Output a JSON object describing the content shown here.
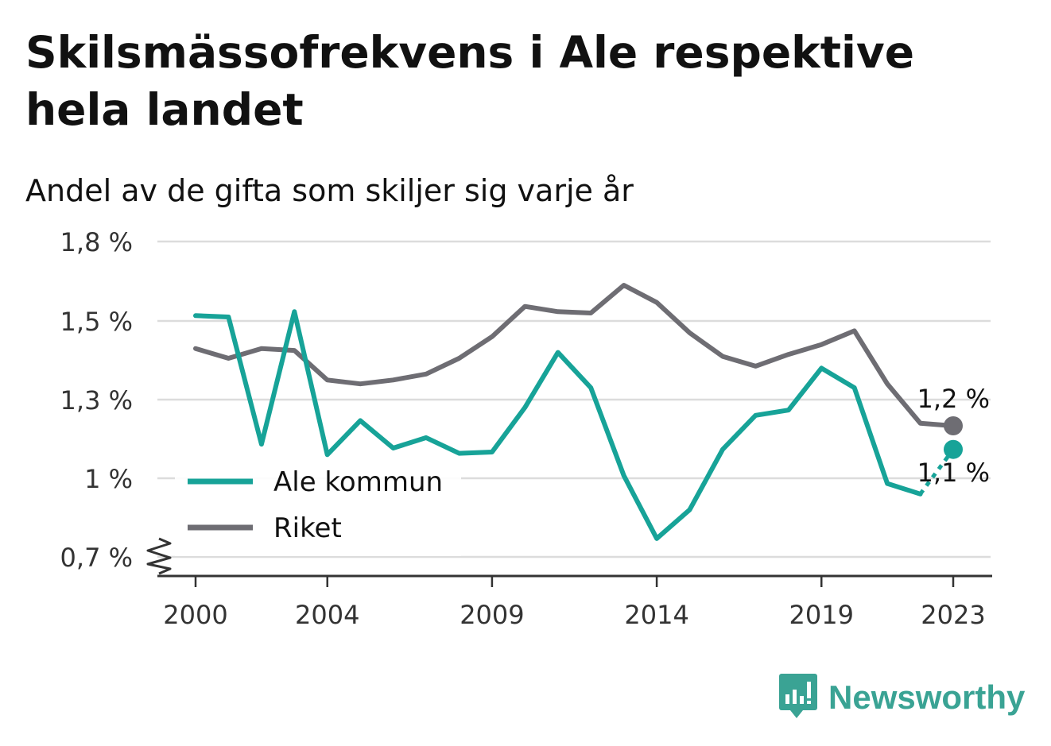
{
  "title": "Skilsmässofrekvens i Ale respektive hela landet",
  "subtitle": "Andel av de gifta som skiljer sig varje år",
  "brand": "Newsworthy",
  "chart_data": {
    "type": "line",
    "x": [
      2000,
      2001,
      2002,
      2003,
      2004,
      2005,
      2006,
      2007,
      2008,
      2009,
      2010,
      2011,
      2012,
      2013,
      2014,
      2015,
      2016,
      2017,
      2018,
      2019,
      2020,
      2021,
      2022,
      2023
    ],
    "x_ticks": [
      2000,
      2004,
      2009,
      2014,
      2019,
      2023
    ],
    "x_tick_labels": [
      "2000",
      "2004",
      "2009",
      "2014",
      "2019",
      "2023"
    ],
    "y_ticks": [
      0.7,
      1.0,
      1.3,
      1.5,
      1.8
    ],
    "y_tick_labels": [
      "0,7 %",
      "1 %",
      "1,3 %",
      "1,5 %",
      "1,8 %"
    ],
    "y_axis_break": true,
    "grid": true,
    "legend_position": "lower-left",
    "series": [
      {
        "name": "Ale kommun",
        "color": "#17a398",
        "values": [
          1.52,
          1.515,
          1.13,
          1.535,
          1.09,
          1.22,
          1.115,
          1.155,
          1.095,
          1.1,
          1.27,
          1.42,
          1.33,
          1.01,
          0.77,
          0.88,
          1.11,
          1.24,
          1.26,
          1.38,
          1.33,
          0.98,
          0.94,
          1.11
        ],
        "end_label": "1,1 %",
        "last_segment_dashed": true
      },
      {
        "name": "Riket",
        "color": "#6e6d73",
        "values": [
          1.43,
          1.405,
          1.43,
          1.425,
          1.35,
          1.34,
          1.35,
          1.365,
          1.405,
          1.46,
          1.555,
          1.535,
          1.53,
          1.635,
          1.57,
          1.47,
          1.41,
          1.385,
          1.415,
          1.44,
          1.475,
          1.34,
          1.21,
          1.2
        ],
        "end_label": "1,2 %",
        "last_segment_dashed": false
      }
    ]
  }
}
